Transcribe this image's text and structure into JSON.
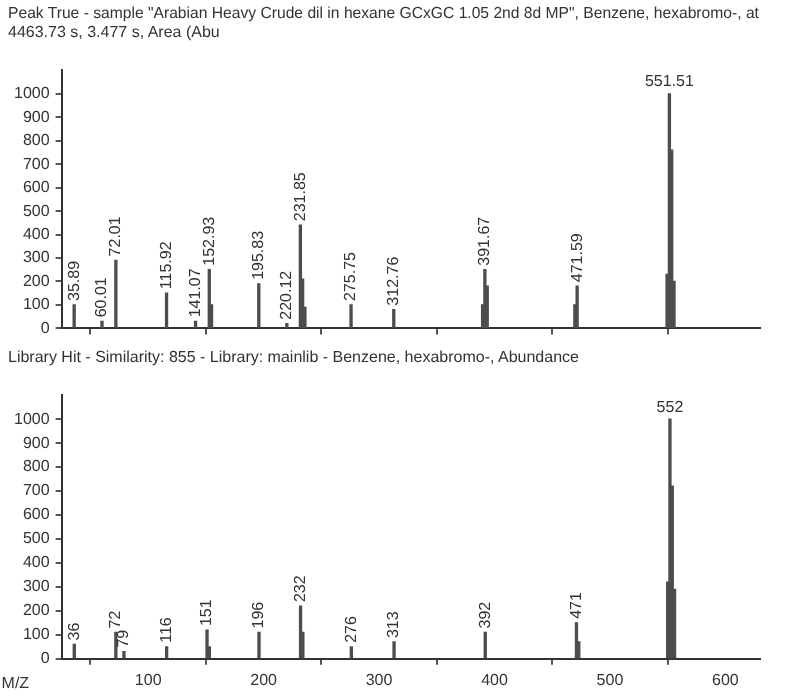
{
  "chart_data": [
    {
      "type": "bar",
      "title": "Peak True - sample \"Arabian Heavy Crude dil in hexane GCxGC 1.05 2nd 8d MP\", Benzene, hexabromo-, at 4463.73 s, 3.477 s, Area (Abu",
      "series": [
        {
          "color": "#4d4d4d",
          "x": [
            35.89,
            60.01,
            72.01,
            115.92,
            141.07,
            152.93,
            154.9,
            195.83,
            220.12,
            231.85,
            233.8,
            235.8,
            275.75,
            312.76,
            389.7,
            391.67,
            393.7,
            469.6,
            471.59,
            549.5,
            551.51,
            553.5,
            555.5
          ],
          "values": [
            100,
            30,
            290,
            150,
            30,
            250,
            100,
            190,
            20,
            440,
            210,
            90,
            100,
            80,
            100,
            250,
            180,
            100,
            180,
            230,
            1000,
            760,
            200
          ]
        }
      ],
      "annotations": [
        {
          "text": "35.89",
          "x": 35.89,
          "y": 100
        },
        {
          "text": "60.01",
          "x": 60.01,
          "y": 30
        },
        {
          "text": "72.01",
          "x": 72.01,
          "y": 290
        },
        {
          "text": "115.92",
          "x": 115.92,
          "y": 150
        },
        {
          "text": "141.07",
          "x": 141.07,
          "y": 30
        },
        {
          "text": "152.93",
          "x": 152.93,
          "y": 250
        },
        {
          "text": "195.83",
          "x": 195.83,
          "y": 190
        },
        {
          "text": "220.12",
          "x": 220.12,
          "y": 20
        },
        {
          "text": "231.85",
          "x": 231.85,
          "y": 440
        },
        {
          "text": "275.75",
          "x": 275.75,
          "y": 100
        },
        {
          "text": "312.76",
          "x": 312.76,
          "y": 80
        },
        {
          "text": "391.67",
          "x": 391.67,
          "y": 250
        },
        {
          "text": "471.59",
          "x": 471.59,
          "y": 180
        },
        {
          "text": "551.51",
          "x": 551.51,
          "y": 1000
        }
      ],
      "xlim": [
        25,
        630
      ],
      "xticks": [
        {
          "value": 100,
          "label": null
        },
        {
          "value": 200,
          "label": null
        },
        {
          "value": 300,
          "label": null
        },
        {
          "value": 400,
          "label": null
        },
        {
          "value": 500,
          "label": null
        },
        {
          "value": 600,
          "label": null
        }
      ],
      "ylim": [
        0,
        1100
      ],
      "yticks": [
        0,
        100,
        200,
        300,
        400,
        500,
        600,
        700,
        800,
        900,
        1000
      ],
      "tick_labels": "y",
      "grid": false,
      "legend": false
    },
    {
      "type": "bar",
      "title": "Library Hit - Similarity: 855 - Library: mainlib - Benzene, hexabromo-, Abundance",
      "xlabel": "M/Z",
      "series": [
        {
          "color": "#4d4d4d",
          "x": [
            36,
            72,
            79,
            116,
            151,
            153,
            196,
            232,
            234,
            276,
            313,
            392,
            471,
            473,
            550,
            552,
            554,
            556
          ],
          "values": [
            60,
            110,
            30,
            50,
            120,
            50,
            110,
            220,
            110,
            50,
            70,
            110,
            150,
            70,
            320,
            1000,
            720,
            290
          ]
        }
      ],
      "annotations": [
        {
          "text": "36",
          "x": 36,
          "y": 60
        },
        {
          "text": "72",
          "x": 72,
          "y": 110
        },
        {
          "text": "79",
          "x": 79,
          "y": 30
        },
        {
          "text": "116",
          "x": 116,
          "y": 50
        },
        {
          "text": "151",
          "x": 151,
          "y": 120
        },
        {
          "text": "196",
          "x": 196,
          "y": 110
        },
        {
          "text": "232",
          "x": 232,
          "y": 220
        },
        {
          "text": "276",
          "x": 276,
          "y": 50
        },
        {
          "text": "313",
          "x": 313,
          "y": 70
        },
        {
          "text": "392",
          "x": 392,
          "y": 110
        },
        {
          "text": "471",
          "x": 471,
          "y": 150
        },
        {
          "text": "552",
          "x": 552,
          "y": 1000
        }
      ],
      "xlim": [
        25,
        630
      ],
      "xticks": [
        100,
        200,
        300,
        400,
        500,
        600
      ],
      "ylim": [
        0,
        1100
      ],
      "yticks": [
        0,
        100,
        200,
        300,
        400,
        500,
        600,
        700,
        800,
        900,
        1000
      ],
      "grid": false,
      "legend": false
    }
  ]
}
